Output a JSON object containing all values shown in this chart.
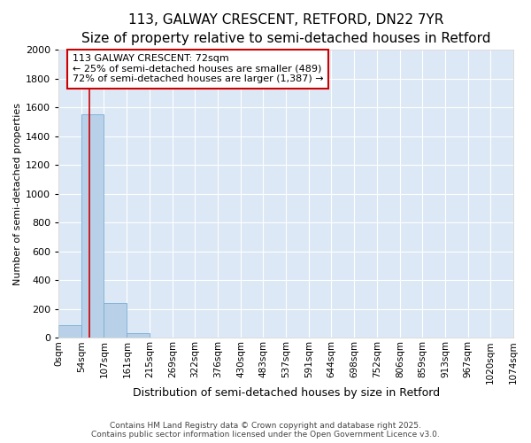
{
  "title_line1": "113, GALWAY CRESCENT, RETFORD, DN22 7YR",
  "title_line2": "Size of property relative to semi-detached houses in Retford",
  "xlabel": "Distribution of semi-detached houses by size in Retford",
  "ylabel": "Number of semi-detached properties",
  "annotation_title": "113 GALWAY CRESCENT: 72sqm",
  "annotation_line2": "← 25% of semi-detached houses are smaller (489)",
  "annotation_line3": "72% of semi-detached houses are larger (1,387) →",
  "footer_line1": "Contains HM Land Registry data © Crown copyright and database right 2025.",
  "footer_line2": "Contains public sector information licensed under the Open Government Licence v3.0.",
  "bar_values": [
    90,
    1555,
    245,
    35,
    0,
    0,
    0,
    0,
    0,
    0,
    0,
    0,
    0,
    0,
    0,
    0,
    0,
    0,
    0,
    0
  ],
  "bin_labels": [
    "0sqm",
    "54sqm",
    "107sqm",
    "161sqm",
    "215sqm",
    "269sqm",
    "322sqm",
    "376sqm",
    "430sqm",
    "483sqm",
    "537sqm",
    "591sqm",
    "644sqm",
    "698sqm",
    "752sqm",
    "806sqm",
    "859sqm",
    "913sqm",
    "967sqm",
    "1020sqm",
    "1074sqm"
  ],
  "bin_edges": [
    0,
    54,
    107,
    161,
    215,
    269,
    322,
    376,
    430,
    483,
    537,
    591,
    644,
    698,
    752,
    806,
    859,
    913,
    967,
    1020,
    1074
  ],
  "property_size": 72,
  "bar_color": "#b8d0e8",
  "bar_edge_color": "#7aadd4",
  "vline_color": "#cc0000",
  "annotation_box_color": "#cc0000",
  "background_color": "#dce8f5",
  "grid_color": "#ffffff",
  "ylim": [
    0,
    2000
  ],
  "yticks": [
    0,
    200,
    400,
    600,
    800,
    1000,
    1200,
    1400,
    1600,
    1800,
    2000
  ],
  "title1_fontsize": 11,
  "title2_fontsize": 9,
  "xlabel_fontsize": 9,
  "ylabel_fontsize": 8,
  "xtick_fontsize": 7.5,
  "ytick_fontsize": 8,
  "ann_fontsize": 8,
  "footer_fontsize": 6.5
}
